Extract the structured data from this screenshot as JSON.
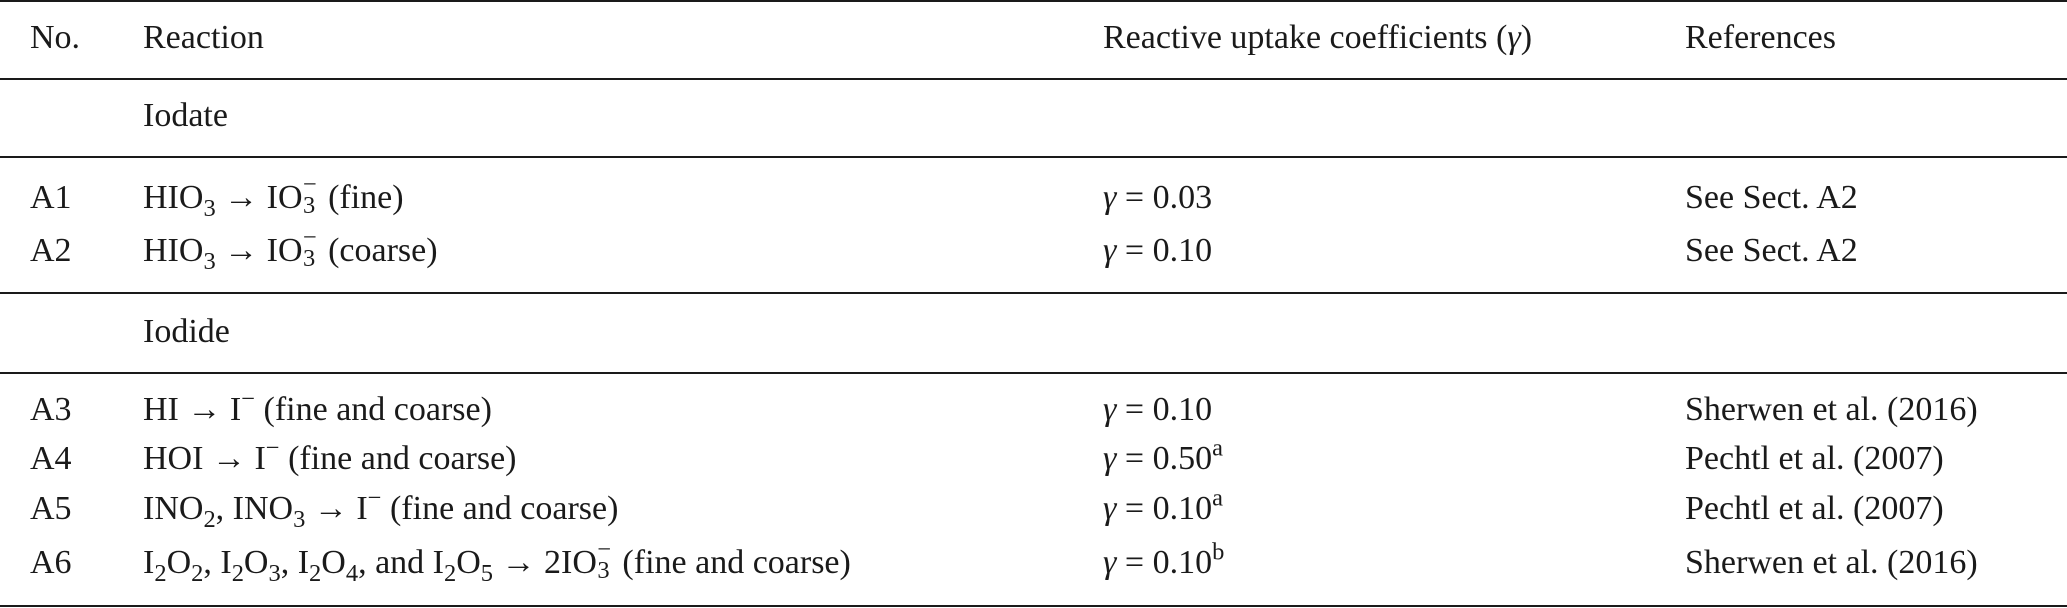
{
  "header": {
    "no": "No.",
    "reaction": "Reaction",
    "gamma_label": "Reactive uptake coefficients (",
    "gamma_symbol": "γ",
    "gamma_close": ")",
    "references": "References"
  },
  "sections": [
    {
      "title": "Iodate"
    },
    {
      "title": "Iodide"
    }
  ],
  "rows": [
    {
      "no": "A1",
      "reaction": "HIO3 → IO3− (fine)",
      "gamma": "γ = 0.03",
      "ref": "See Sect. A2"
    },
    {
      "no": "A2",
      "reaction": "HIO3 → IO3− (coarse)",
      "gamma": "γ = 0.10",
      "ref": "See Sect. A2"
    },
    {
      "no": "A3",
      "reaction": "HI → I− (fine and coarse)",
      "gamma": "γ = 0.10",
      "ref": "Sherwen et al. (2016)"
    },
    {
      "no": "A4",
      "reaction": "HOI → I− (fine and coarse)",
      "gamma": "γ = 0.50a",
      "ref": "Pechtl et al. (2007)"
    },
    {
      "no": "A5",
      "reaction": "INO2, INO3 → I− (fine and coarse)",
      "gamma": "γ = 0.10a",
      "ref": "Pechtl et al. (2007)"
    },
    {
      "no": "A6",
      "reaction": "I2O2, I2O3, I2O4, and I2O5 → 2IO3− (fine and coarse)",
      "gamma": "γ = 0.10b",
      "ref": "Sherwen et al. (2016)"
    }
  ],
  "text": {
    "arrow": "→",
    "minus": "−",
    "eq": " = ",
    "sub3": "3",
    "sub2": "2",
    "sub4": "4",
    "sub5": "5",
    "sup_a": "a",
    "sup_b": "b",
    "HIO": "HIO",
    "IO": "IO",
    "HI": "HI",
    "I": "I",
    "HOI": "HOI",
    "INO": "INO",
    "O": "O",
    "2IO": "2IO",
    "fine": " (fine)",
    "coarse": " (coarse)",
    "fine_coarse": " (fine and coarse)",
    "comma": ", ",
    "and": ", and ",
    "v003": "0.03",
    "v010": "0.10",
    "v050": "0.50"
  }
}
